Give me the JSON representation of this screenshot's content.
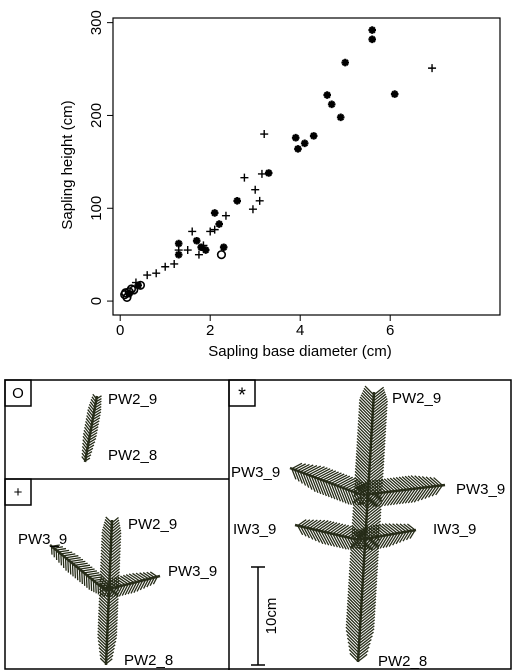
{
  "chart_data": {
    "type": "scatter",
    "xlabel": "Sapling base diameter (cm)",
    "ylabel": "Sapling height (cm)",
    "xlim": [
      -0.16,
      8.44
    ],
    "ylim": [
      -15,
      305
    ],
    "xticks": [
      0,
      2,
      4,
      6
    ],
    "yticks": [
      0,
      100,
      200,
      300
    ],
    "series": [
      {
        "name": "O",
        "marker": "circle",
        "color": "#000000",
        "x": [
          0.1,
          0.12,
          0.15,
          0.2,
          0.25,
          0.3,
          0.45,
          2.25
        ],
        "values": [
          7,
          9,
          4,
          10,
          13,
          12,
          17,
          50
        ]
      },
      {
        "name": "+",
        "marker": "plus",
        "color": "#000000",
        "x": [
          0.35,
          0.6,
          0.8,
          1.0,
          1.2,
          1.3,
          1.5,
          1.6,
          1.75,
          1.85,
          2.0,
          2.1,
          2.35,
          2.76,
          2.95,
          3.0,
          3.1,
          3.15,
          3.2,
          6.93
        ],
        "values": [
          20,
          28,
          30,
          37,
          40,
          55,
          55,
          75,
          50,
          60,
          75,
          77,
          92,
          133,
          99,
          120,
          108,
          137,
          180,
          251
        ]
      },
      {
        "name": "*",
        "marker": "asterisk",
        "color": "#000000",
        "x": [
          0.2,
          0.4,
          1.3,
          1.3,
          1.7,
          1.8,
          1.9,
          2.1,
          2.2,
          2.3,
          2.6,
          3.3,
          3.9,
          3.95,
          4.1,
          4.3,
          4.6,
          4.7,
          4.9,
          5.0,
          5.6,
          5.6,
          6.1
        ],
        "values": [
          8,
          17,
          62,
          50,
          65,
          58,
          55,
          95,
          83,
          58,
          108,
          138,
          176,
          164,
          170,
          178,
          222,
          212,
          198,
          257,
          292,
          282,
          223
        ]
      }
    ]
  },
  "panels": [
    {
      "symbol": "O",
      "labels": [
        "PW2_9",
        "PW2_8"
      ]
    },
    {
      "symbol": "+",
      "labels": [
        "PW2_9",
        "PW3_9",
        "PW3_9",
        "PW2_8"
      ]
    },
    {
      "symbol": "*",
      "labels": [
        "PW2_9",
        "PW3_9",
        "PW3_9",
        "IW3_9",
        "IW3_9",
        "PW2_8"
      ],
      "scale": "10cm"
    }
  ]
}
